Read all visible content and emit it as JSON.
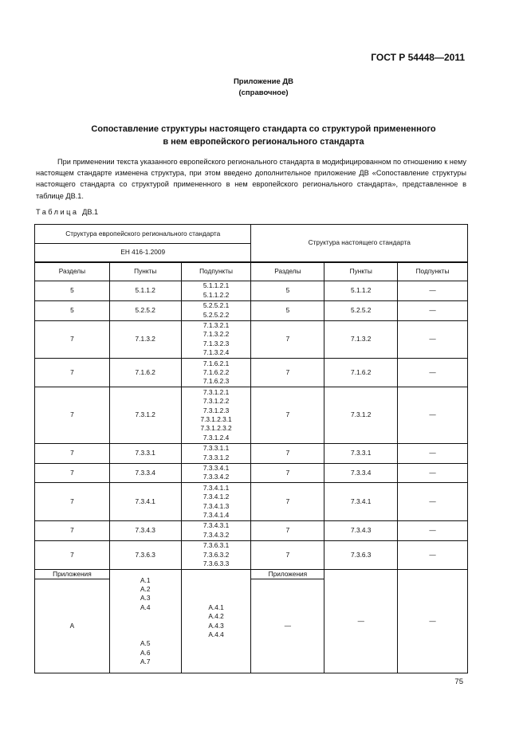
{
  "header": {
    "doc_code": "ГОСТ Р 54448—2011"
  },
  "appendix": {
    "name": "Приложение ДВ",
    "kind": "(справочное)"
  },
  "title": {
    "line1": "Сопоставление структуры настоящего стандарта со структурой примененного",
    "line2": "в нем европейского регионального стандарта"
  },
  "paragraph": "При применении текста указанного европейского регионального стандарта в модифицированном по отношению к нему настоящем стандарте изменена структура, при этом введено дополнительное приложение ДВ «Сопоставление структуры настоящего стандарта со структурой примененного в нем европейского регионального стандарта», представленное в таблице ДВ.1.",
  "table_caption": {
    "word": "Таблица",
    "num": "ДВ.1"
  },
  "table": {
    "eu_header": "Структура европейского регионального стандарта",
    "eu_code": "ЕН 416-1.2009",
    "ru_header": "Структура настоящего стандарта",
    "columns": [
      "Разделы",
      "Пункты",
      "Подпункты",
      "Разделы",
      "Пункты",
      "Подпункты"
    ],
    "rows": [
      [
        "5",
        "5.1.1.2",
        "5.1.1.2.1\n5.1.1.2.2",
        "5",
        "5.1.1.2",
        "—"
      ],
      [
        "5",
        "5.2.5.2",
        "5.2.5.2.1\n5.2.5.2.2",
        "5",
        "5.2.5.2",
        "—"
      ],
      [
        "7",
        "7.1.3.2",
        "7.1.3.2.1\n7.1.3.2.2\n7.1.3.2.3\n7.1.3.2.4",
        "7",
        "7.1.3.2",
        "—"
      ],
      [
        "7",
        "7.1.6.2",
        "7.1.6.2.1\n7.1.6.2.2\n7.1.6.2.3",
        "7",
        "7.1.6.2",
        "—"
      ],
      [
        "7",
        "7.3.1.2",
        "7.3.1.2.1\n7.3.1.2.2\n7.3.1.2.3\n7.3.1.2.3.1\n7.3.1.2.3.2\n7.3.1.2.4",
        "7",
        "7.3.1.2",
        "—"
      ],
      [
        "7",
        "7.3.3.1",
        "7.3.3.1.1\n7.3.3.1.2",
        "7",
        "7.3.3.1",
        "—"
      ],
      [
        "7",
        "7.3.3.4",
        "7.3.3.4.1\n7.3.3.4.2",
        "7",
        "7.3.3.4",
        "—"
      ],
      [
        "7",
        "7.3.4.1",
        "7.3.4.1.1\n7.3.4.1.2\n7.3.4.1.3\n7.3.4.1.4",
        "7",
        "7.3.4.1",
        "—"
      ],
      [
        "7",
        "7.3.4.3",
        "7.3.4.3.1\n7.3.4.3.2",
        "7",
        "7.3.4.3",
        "—"
      ],
      [
        "7",
        "7.3.6.3",
        "7.3.6.3.1\n7.3.6.3.2\n7.3.6.3.3",
        "7",
        "7.3.6.3",
        "—"
      ]
    ],
    "appendix_row": {
      "eu_label": "Приложения",
      "eu_section": "А",
      "eu_points": "А.1\nА.2\nА.3\nА.4\n\n\n\nА.5\nА.6\nА.7",
      "eu_subpoints": "А.4.1\nА.4.2\nА.4.3\nА.4.4",
      "ru_label": "Приложения",
      "ru_section": "—",
      "ru_points": "—",
      "ru_subpoints": "—"
    }
  },
  "page_number": "75"
}
